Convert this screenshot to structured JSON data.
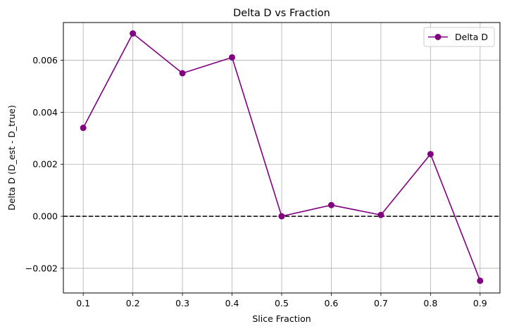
{
  "chart_data": {
    "type": "line",
    "title": "Delta D vs Fraction",
    "xlabel": "Slice Fraction",
    "ylabel": "Delta D (D_est - D_true)",
    "xlim": [
      0.06,
      0.94
    ],
    "ylim": [
      -0.00295,
      0.00745
    ],
    "xticks": [
      0.1,
      0.2,
      0.3,
      0.4,
      0.5,
      0.6,
      0.7,
      0.8,
      0.9
    ],
    "xtick_labels": [
      "0.1",
      "0.2",
      "0.3",
      "0.4",
      "0.5",
      "0.6",
      "0.7",
      "0.8",
      "0.9"
    ],
    "yticks": [
      -0.002,
      0.0,
      0.002,
      0.004,
      0.006
    ],
    "ytick_labels": [
      "−0.002",
      "0.000",
      "0.002",
      "0.004",
      "0.006"
    ],
    "grid": true,
    "legend_position": "top-right",
    "reference_line": {
      "y": 0.0,
      "style": "dashed",
      "color": "#000000"
    },
    "series": [
      {
        "name": "Delta D",
        "color": "#800080",
        "marker": "circle",
        "x": [
          0.1,
          0.2,
          0.3,
          0.4,
          0.5,
          0.6,
          0.7,
          0.8,
          0.9
        ],
        "y": [
          0.0034,
          0.00703,
          0.0055,
          0.00611,
          0.0,
          0.00043,
          5e-05,
          0.00239,
          -0.00248
        ]
      }
    ]
  }
}
